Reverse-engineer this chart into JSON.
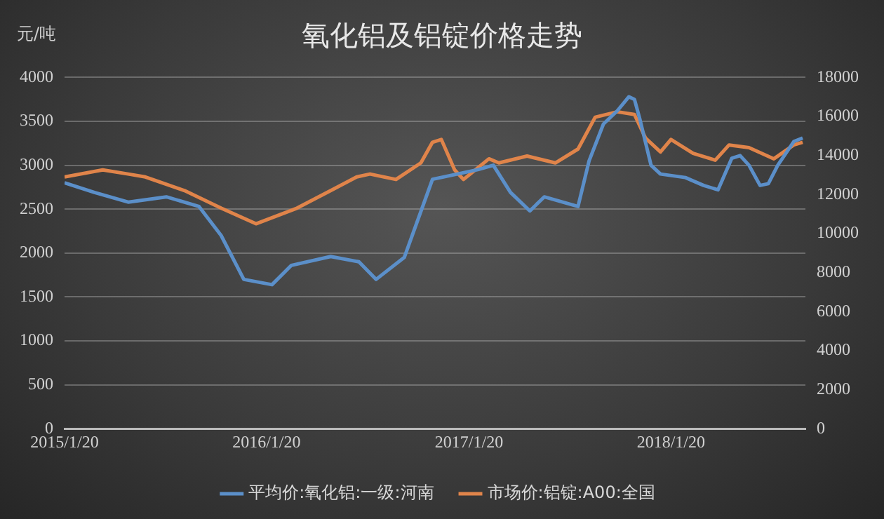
{
  "chart_data": {
    "type": "line",
    "title": "氧化铝及铝锭价格走势",
    "ylabel": "元/吨",
    "xlim": [
      "2015-01-20",
      "2018-09-20"
    ],
    "xticks": [
      {
        "value": "2015-01-20",
        "label": "2015/1/20"
      },
      {
        "value": "2016-01-20",
        "label": "2016/1/20"
      },
      {
        "value": "2017-01-20",
        "label": "2017/1/20"
      },
      {
        "value": "2018-01-20",
        "label": "2018/1/20"
      }
    ],
    "ylim": [
      0,
      4000
    ],
    "yticks": [
      0,
      500,
      1000,
      1500,
      2000,
      2500,
      3000,
      3500,
      4000
    ],
    "y2lim": [
      0,
      18000
    ],
    "y2ticks": [
      0,
      2000,
      4000,
      6000,
      8000,
      10000,
      12000,
      14000,
      16000,
      18000
    ],
    "grid": "y",
    "legend": "bottom",
    "marker": "none",
    "line_style": "solid",
    "series": [
      {
        "name": "平均价:氧化铝:一级:河南",
        "color": "#5b8fc9",
        "axis": "y",
        "x": [
          "2015-01-20",
          "2015-03-15",
          "2015-05-15",
          "2015-07-23",
          "2015-09-20",
          "2015-10-30",
          "2015-12-10",
          "2016-01-30",
          "2016-03-05",
          "2016-05-15",
          "2016-07-05",
          "2016-08-05",
          "2016-09-25",
          "2016-11-15",
          "2017-02-05",
          "2017-03-05",
          "2017-04-05",
          "2017-05-10",
          "2017-06-05",
          "2017-08-05",
          "2017-08-25",
          "2017-09-20",
          "2017-10-15",
          "2017-11-05",
          "2017-11-15",
          "2017-11-25",
          "2017-12-15",
          "2018-01-01",
          "2018-02-15",
          "2018-03-20",
          "2018-04-15",
          "2018-05-10",
          "2018-05-25",
          "2018-06-10",
          "2018-06-30",
          "2018-07-15",
          "2018-08-01",
          "2018-08-30",
          "2018-09-15"
        ],
        "values": [
          2800,
          2690,
          2580,
          2640,
          2530,
          2200,
          1700,
          1640,
          1860,
          1960,
          1900,
          1700,
          1950,
          2840,
          2950,
          3000,
          2690,
          2480,
          2640,
          2530,
          3050,
          3470,
          3620,
          3780,
          3750,
          3520,
          3000,
          2900,
          2860,
          2770,
          2720,
          3080,
          3110,
          3000,
          2770,
          2790,
          3000,
          3270,
          3310
        ]
      },
      {
        "name": "市场价:铝锭:A00:全国",
        "color": "#e0844a",
        "axis": "y2",
        "x": [
          "2015-01-20",
          "2015-03-30",
          "2015-05-15",
          "2015-06-15",
          "2015-08-25",
          "2015-10-30",
          "2016-01-01",
          "2016-03-15",
          "2016-05-15",
          "2016-07-01",
          "2016-07-25",
          "2016-09-10",
          "2016-10-25",
          "2016-11-15",
          "2016-12-01",
          "2016-12-25",
          "2017-01-10",
          "2017-02-25",
          "2017-03-15",
          "2017-05-05",
          "2017-06-25",
          "2017-08-05",
          "2017-09-05",
          "2017-10-15",
          "2017-11-15",
          "2017-12-05",
          "2018-01-01",
          "2018-01-20",
          "2018-03-01",
          "2018-04-10",
          "2018-05-05",
          "2018-06-10",
          "2018-07-25",
          "2018-08-30",
          "2018-09-15"
        ],
        "values": [
          12900,
          13260,
          13050,
          12900,
          12200,
          11300,
          10500,
          11300,
          12200,
          12900,
          13050,
          12770,
          13620,
          14680,
          14820,
          13260,
          12770,
          13830,
          13620,
          13970,
          13620,
          14330,
          15960,
          16240,
          16100,
          14890,
          14180,
          14820,
          14110,
          13760,
          14540,
          14400,
          13830,
          14540,
          14680
        ]
      }
    ]
  }
}
